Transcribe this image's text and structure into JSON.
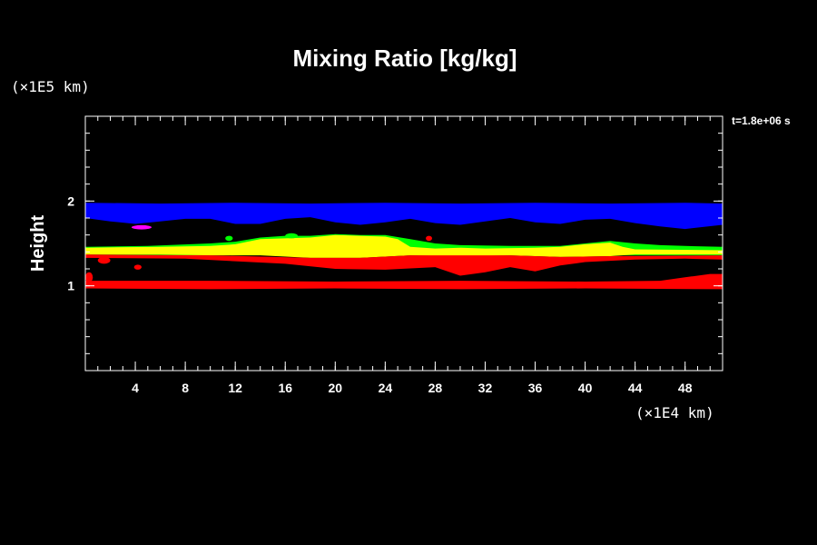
{
  "chart_data": {
    "type": "heatmap",
    "title": "Mixing Ratio [kg/kg]",
    "ylabel": "Height",
    "xlabel": "",
    "x_unit": "(×1E4 km)",
    "y_unit": "(×1E5 km)",
    "time_label": "t=1.8e+06 s",
    "xlim": [
      0,
      51
    ],
    "ylim": [
      0,
      3
    ],
    "x_ticks": [
      4,
      8,
      12,
      16,
      20,
      24,
      28,
      32,
      36,
      40,
      44,
      48
    ],
    "y_ticks": [
      1,
      2
    ],
    "x_minor_step": 1,
    "y_minor_step": 0.2,
    "colors": {
      "background": "#000000",
      "axis": "#ffffff",
      "blue": "#0000ff",
      "green": "#00ff00",
      "yellow": "#ffff00",
      "red": "#ff0000",
      "magenta": "#ff00ff"
    },
    "bands": [
      {
        "name": "blue",
        "color": "#0000ff",
        "top": [
          [
            0,
            1.98
          ],
          [
            6,
            1.97
          ],
          [
            12,
            1.98
          ],
          [
            18,
            1.97
          ],
          [
            24,
            1.98
          ],
          [
            30,
            1.97
          ],
          [
            36,
            1.98
          ],
          [
            42,
            1.97
          ],
          [
            48,
            1.98
          ],
          [
            51,
            1.97
          ]
        ],
        "bottom": [
          [
            0,
            1.8
          ],
          [
            2,
            1.76
          ],
          [
            4,
            1.73
          ],
          [
            6,
            1.76
          ],
          [
            8,
            1.79
          ],
          [
            10,
            1.79
          ],
          [
            12,
            1.73
          ],
          [
            14,
            1.73
          ],
          [
            16,
            1.79
          ],
          [
            18,
            1.81
          ],
          [
            20,
            1.75
          ],
          [
            22,
            1.72
          ],
          [
            24,
            1.75
          ],
          [
            26,
            1.79
          ],
          [
            28,
            1.74
          ],
          [
            30,
            1.72
          ],
          [
            32,
            1.76
          ],
          [
            34,
            1.8
          ],
          [
            36,
            1.75
          ],
          [
            38,
            1.73
          ],
          [
            40,
            1.78
          ],
          [
            42,
            1.79
          ],
          [
            44,
            1.74
          ],
          [
            46,
            1.7
          ],
          [
            48,
            1.67
          ],
          [
            51,
            1.72
          ]
        ]
      },
      {
        "name": "green",
        "color": "#00ff00",
        "top": [
          [
            0,
            1.46
          ],
          [
            5,
            1.47
          ],
          [
            10,
            1.5
          ],
          [
            12,
            1.52
          ],
          [
            14,
            1.57
          ],
          [
            16,
            1.59
          ],
          [
            18,
            1.59
          ],
          [
            20,
            1.61
          ],
          [
            22,
            1.6
          ],
          [
            24,
            1.6
          ],
          [
            26,
            1.55
          ],
          [
            28,
            1.5
          ],
          [
            30,
            1.48
          ],
          [
            34,
            1.47
          ],
          [
            38,
            1.47
          ],
          [
            40,
            1.5
          ],
          [
            42,
            1.53
          ],
          [
            44,
            1.5
          ],
          [
            46,
            1.48
          ],
          [
            48,
            1.47
          ],
          [
            51,
            1.46
          ]
        ],
        "bottom": [
          [
            0,
            1.36
          ],
          [
            10,
            1.36
          ],
          [
            20,
            1.37
          ],
          [
            30,
            1.36
          ],
          [
            40,
            1.36
          ],
          [
            51,
            1.36
          ]
        ]
      },
      {
        "name": "yellow",
        "color": "#ffff00",
        "top": [
          [
            0,
            1.45
          ],
          [
            6,
            1.46
          ],
          [
            10,
            1.47
          ],
          [
            12,
            1.49
          ],
          [
            14,
            1.55
          ],
          [
            16,
            1.56
          ],
          [
            18,
            1.57
          ],
          [
            20,
            1.6
          ],
          [
            22,
            1.59
          ],
          [
            24,
            1.58
          ],
          [
            25,
            1.55
          ],
          [
            26,
            1.46
          ],
          [
            28,
            1.44
          ],
          [
            30,
            1.45
          ],
          [
            32,
            1.44
          ],
          [
            36,
            1.45
          ],
          [
            38,
            1.46
          ],
          [
            40,
            1.49
          ],
          [
            42,
            1.51
          ],
          [
            43,
            1.46
          ],
          [
            44,
            1.43
          ],
          [
            51,
            1.42
          ]
        ],
        "bottom": [
          [
            0,
            1.37
          ],
          [
            6,
            1.37
          ],
          [
            10,
            1.36
          ],
          [
            14,
            1.36
          ],
          [
            18,
            1.33
          ],
          [
            22,
            1.33
          ],
          [
            26,
            1.36
          ],
          [
            30,
            1.35
          ],
          [
            34,
            1.36
          ],
          [
            38,
            1.34
          ],
          [
            42,
            1.35
          ],
          [
            44,
            1.37
          ],
          [
            51,
            1.37
          ]
        ]
      },
      {
        "name": "red-upper",
        "color": "#ff0000",
        "top": [
          [
            0,
            1.37
          ],
          [
            10,
            1.36
          ],
          [
            18,
            1.33
          ],
          [
            22,
            1.33
          ],
          [
            26,
            1.36
          ],
          [
            34,
            1.36
          ],
          [
            38,
            1.34
          ],
          [
            42,
            1.35
          ],
          [
            51,
            1.36
          ]
        ],
        "bottom": [
          [
            0,
            1.33
          ],
          [
            8,
            1.32
          ],
          [
            12,
            1.29
          ],
          [
            16,
            1.26
          ],
          [
            20,
            1.2
          ],
          [
            24,
            1.19
          ],
          [
            28,
            1.22
          ],
          [
            30,
            1.12
          ],
          [
            32,
            1.16
          ],
          [
            34,
            1.22
          ],
          [
            36,
            1.17
          ],
          [
            38,
            1.24
          ],
          [
            40,
            1.28
          ],
          [
            44,
            1.31
          ],
          [
            48,
            1.32
          ],
          [
            51,
            1.31
          ]
        ]
      },
      {
        "name": "red-lower",
        "color": "#ff0000",
        "top": [
          [
            0,
            1.06
          ],
          [
            10,
            1.06
          ],
          [
            20,
            1.05
          ],
          [
            30,
            1.06
          ],
          [
            40,
            1.05
          ],
          [
            46,
            1.06
          ],
          [
            48,
            1.1
          ],
          [
            50,
            1.14
          ],
          [
            51,
            1.14
          ]
        ],
        "bottom": [
          [
            0,
            0.97
          ],
          [
            10,
            0.96
          ],
          [
            20,
            0.97
          ],
          [
            30,
            0.96
          ],
          [
            40,
            0.97
          ],
          [
            51,
            0.96
          ]
        ]
      }
    ],
    "blobs": [
      {
        "name": "magenta-patch",
        "color": "#ff00ff",
        "cx": 4.5,
        "cy": 1.69,
        "rx": 0.8,
        "ry": 0.025
      },
      {
        "name": "red-speck-1",
        "color": "#ff0000",
        "cx": 1.5,
        "cy": 1.3,
        "rx": 0.5,
        "ry": 0.04
      },
      {
        "name": "red-speck-2",
        "color": "#ff0000",
        "cx": 4.2,
        "cy": 1.22,
        "rx": 0.3,
        "ry": 0.03
      },
      {
        "name": "red-speck-3",
        "color": "#ff0000",
        "cx": 27.5,
        "cy": 1.56,
        "rx": 0.25,
        "ry": 0.03
      },
      {
        "name": "red-speck-4",
        "color": "#ff0000",
        "cx": 0.3,
        "cy": 1.1,
        "rx": 0.3,
        "ry": 0.06
      },
      {
        "name": "green-speck-1",
        "color": "#00ff00",
        "cx": 16.5,
        "cy": 1.59,
        "rx": 0.5,
        "ry": 0.03
      },
      {
        "name": "green-speck-2",
        "color": "#00ff00",
        "cx": 11.5,
        "cy": 1.56,
        "rx": 0.3,
        "ry": 0.03
      }
    ]
  }
}
